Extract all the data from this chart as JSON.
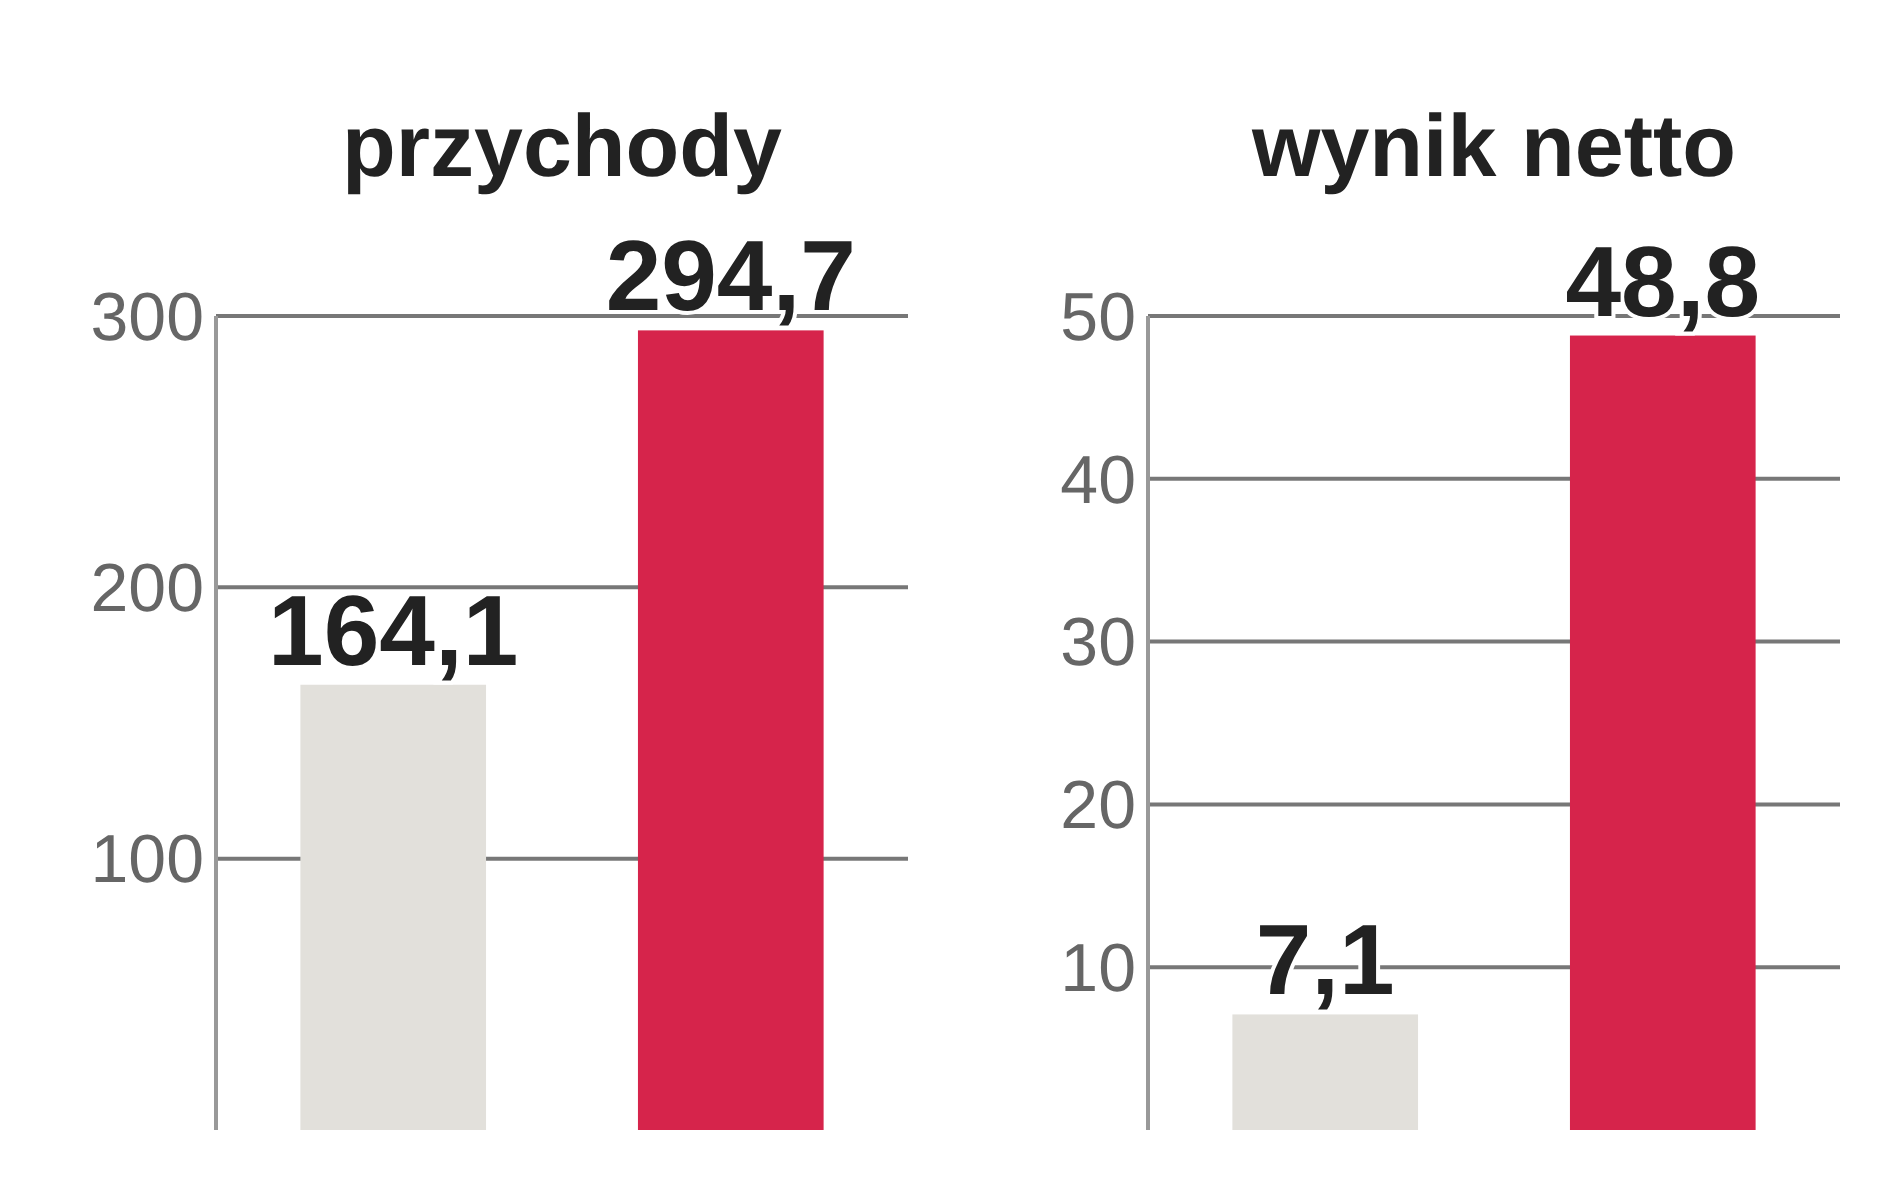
{
  "chart_data": [
    {
      "type": "bar",
      "title": "przychody",
      "categories": [
        null,
        null
      ],
      "values": [
        164.1,
        294.7
      ],
      "colors": [
        "#e2e0db",
        "#d6244b"
      ],
      "value_labels": [
        "164,1",
        "294,7"
      ],
      "ylim": [
        0,
        300
      ],
      "yticks": [
        100,
        200,
        300
      ],
      "grid": "y"
    },
    {
      "type": "bar",
      "title": "wynik netto",
      "categories": [
        null,
        null
      ],
      "values": [
        7.1,
        48.8
      ],
      "colors": [
        "#e2e0db",
        "#d6244b"
      ],
      "value_labels": [
        "7,1",
        "48,8"
      ],
      "ylim": [
        0,
        50
      ],
      "yticks": [
        10,
        20,
        30,
        40,
        50
      ],
      "grid": "y"
    }
  ]
}
